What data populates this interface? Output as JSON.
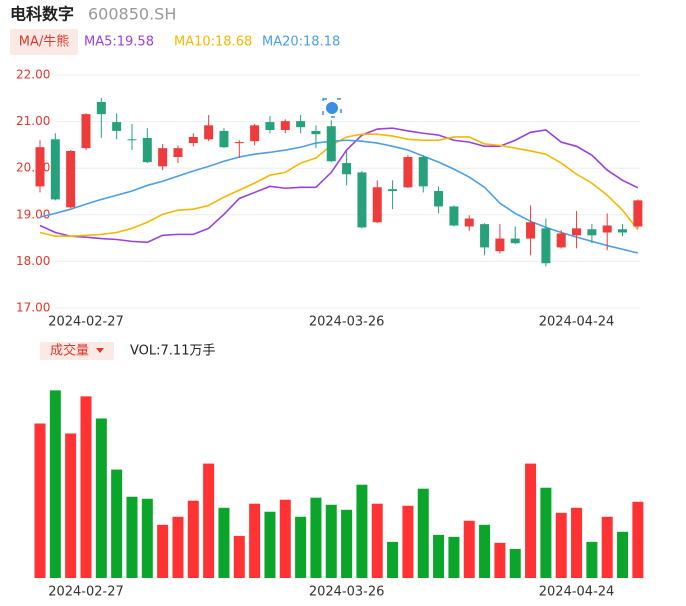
{
  "header": {
    "name": "电科数字",
    "code": "600850.SH",
    "ma_button": "MA/牛熊",
    "volume_button": "成交量",
    "volume_label": "VOL:7.11万手"
  },
  "chart_data": [
    {
      "type": "candlestick",
      "categories": [
        null,
        null,
        null,
        "2024-02-27",
        null,
        null,
        null,
        null,
        null,
        null,
        null,
        null,
        null,
        null,
        null,
        null,
        null,
        null,
        null,
        null,
        "2024-03-26",
        null,
        null,
        null,
        null,
        null,
        null,
        null,
        null,
        null,
        null,
        null,
        null,
        null,
        null,
        "2024-04-24",
        null,
        null,
        null,
        null
      ],
      "open": [
        19.61,
        20.62,
        19.16,
        20.43,
        21.42,
        20.99,
        20.62,
        20.65,
        20.04,
        20.24,
        20.54,
        20.62,
        20.8,
        20.54,
        20.58,
        20.99,
        20.82,
        21.01,
        20.8,
        20.9,
        20.11,
        19.91,
        18.84,
        19.55,
        19.59,
        20.24,
        19.51,
        19.18,
        18.75,
        18.8,
        18.22,
        18.49,
        18.49,
        18.71,
        18.3,
        18.56,
        18.69,
        18.62,
        18.69,
        18.75
      ],
      "high": [
        20.6,
        20.75,
        20.39,
        21.18,
        21.51,
        21.18,
        20.95,
        20.86,
        20.52,
        20.49,
        20.75,
        21.14,
        20.86,
        20.6,
        20.95,
        21.12,
        21.05,
        21.14,
        20.92,
        21.03,
        20.37,
        19.94,
        19.74,
        19.74,
        20.28,
        20.28,
        19.61,
        19.2,
        18.99,
        18.82,
        18.8,
        18.75,
        19.2,
        18.92,
        18.67,
        19.08,
        18.8,
        19.03,
        18.8,
        19.33
      ],
      "low": [
        19.48,
        19.31,
        19.14,
        20.39,
        20.65,
        20.62,
        20.39,
        20.11,
        19.96,
        20.11,
        20.47,
        20.58,
        20.43,
        20.22,
        20.49,
        20.75,
        20.75,
        20.75,
        20.43,
        20.13,
        19.63,
        18.71,
        18.82,
        19.12,
        19.57,
        19.48,
        19.03,
        18.75,
        18.65,
        18.13,
        18.17,
        18.37,
        18.13,
        17.89,
        18.28,
        18.28,
        18.39,
        18.24,
        18.54,
        18.71
      ],
      "close": [
        20.45,
        19.33,
        20.37,
        21.16,
        21.16,
        20.8,
        20.6,
        20.13,
        20.43,
        20.43,
        20.67,
        20.92,
        20.45,
        20.56,
        20.92,
        20.82,
        21.01,
        20.88,
        20.73,
        20.15,
        19.87,
        18.73,
        19.59,
        19.51,
        20.24,
        19.61,
        19.18,
        18.77,
        18.92,
        18.3,
        18.49,
        18.39,
        18.84,
        17.96,
        18.6,
        18.71,
        18.56,
        18.77,
        18.62,
        19.31
      ],
      "up_color": "#ee3b3b",
      "down_color": "#26a17b",
      "ylim": [
        17,
        22
      ],
      "yticks": [
        {
          "value": 17,
          "label": "17.00"
        },
        {
          "value": 18,
          "label": "18.00"
        },
        {
          "value": 19,
          "label": "19.00"
        },
        {
          "value": 20,
          "label": "20.00"
        },
        {
          "value": 21,
          "label": "21.00"
        },
        {
          "value": 22,
          "label": "22.00"
        }
      ],
      "grid": true,
      "series": [
        {
          "name": "MA5:19.58",
          "color": "#9b40e0",
          "values": [
            18.77,
            18.62,
            18.54,
            18.52,
            18.49,
            18.47,
            18.43,
            18.41,
            18.56,
            18.58,
            18.58,
            18.71,
            19.01,
            19.35,
            19.48,
            19.61,
            19.57,
            19.59,
            19.59,
            19.91,
            20.39,
            20.71,
            20.84,
            20.86,
            20.8,
            20.75,
            20.71,
            20.6,
            20.56,
            20.47,
            20.47,
            20.6,
            20.77,
            20.82,
            20.56,
            20.47,
            20.28,
            19.96,
            19.74,
            19.58
          ]
        },
        {
          "name": "MA10:18.68",
          "color": "#f5b800",
          "values": [
            18.62,
            18.54,
            18.54,
            18.56,
            18.58,
            18.62,
            18.71,
            18.84,
            19.01,
            19.1,
            19.12,
            19.2,
            19.38,
            19.53,
            19.68,
            19.85,
            19.91,
            20.11,
            20.22,
            20.49,
            20.67,
            20.73,
            20.73,
            20.69,
            20.62,
            20.6,
            20.6,
            20.67,
            20.67,
            20.52,
            20.49,
            20.43,
            20.37,
            20.3,
            20.11,
            19.87,
            19.68,
            19.42,
            19.1,
            18.68
          ]
        },
        {
          "name": "MA20:18.18",
          "color": "#4a9fe8",
          "values": [
            18.95,
            19.03,
            19.12,
            19.23,
            19.33,
            19.42,
            19.51,
            19.63,
            19.72,
            19.83,
            19.94,
            20.04,
            20.15,
            20.24,
            20.3,
            20.34,
            20.39,
            20.45,
            20.54,
            20.58,
            20.6,
            20.58,
            20.54,
            20.47,
            20.39,
            20.26,
            20.13,
            19.98,
            19.81,
            19.59,
            19.25,
            19.03,
            18.86,
            18.73,
            18.62,
            18.52,
            18.43,
            18.34,
            18.26,
            18.18
          ]
        }
      ]
    },
    {
      "type": "bar",
      "categories": [
        null,
        null,
        null,
        "2024-02-27",
        null,
        null,
        null,
        null,
        null,
        null,
        null,
        null,
        null,
        null,
        null,
        null,
        null,
        null,
        null,
        null,
        "2024-03-26",
        null,
        null,
        null,
        null,
        null,
        null,
        null,
        null,
        null,
        null,
        null,
        null,
        null,
        null,
        "2024-04-24",
        null,
        null,
        null,
        null
      ],
      "values": [
        14.41,
        17.5,
        13.48,
        16.94,
        14.88,
        10.11,
        7.58,
        7.39,
        4.96,
        5.71,
        7.21,
        10.67,
        6.55,
        3.93,
        6.93,
        6.18,
        7.3,
        5.71,
        7.49,
        6.83,
        6.36,
        8.7,
        6.93,
        3.37,
        6.74,
        8.33,
        4.02,
        3.84,
        5.34,
        4.96,
        3.28,
        2.71,
        10.67,
        8.42,
        6.08,
        6.55,
        3.37,
        5.71,
        4.31,
        7.11
      ],
      "up_color": "#ff3333",
      "down_color": "#0aa52a",
      "ylim": [
        0,
        18
      ]
    }
  ]
}
